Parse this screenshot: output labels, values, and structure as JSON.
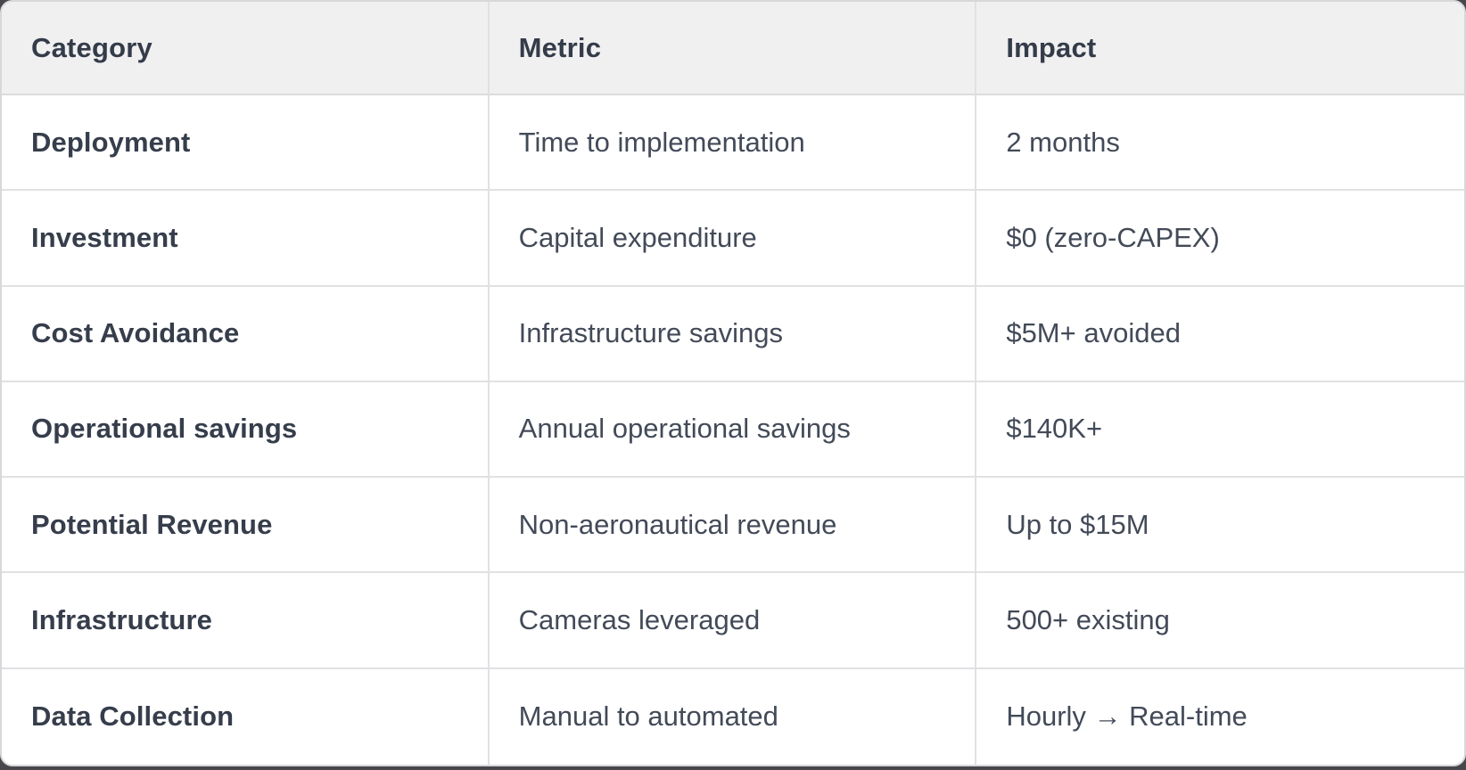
{
  "chart_data": {
    "type": "table",
    "title": "",
    "columns": [
      "Category",
      "Metric",
      "Impact"
    ],
    "rows": [
      {
        "category": "Deployment",
        "metric": "Time to implementation",
        "impact": "2 months"
      },
      {
        "category": "Investment",
        "metric": "Capital expenditure",
        "impact": "$0 (zero-CAPEX)"
      },
      {
        "category": "Cost Avoidance",
        "metric": "Infrastructure savings",
        "impact": "$5M+ avoided"
      },
      {
        "category": "Operational savings",
        "metric": "Annual operational savings",
        "impact": "$140K+"
      },
      {
        "category": "Potential Revenue",
        "metric": "Non-aeronautical revenue",
        "impact": "Up to $15M"
      },
      {
        "category": "Infrastructure",
        "metric": "Cameras leveraged",
        "impact": "500+ existing"
      },
      {
        "category": "Data Collection",
        "metric": "Manual to automated",
        "impact": "Hourly → Real-time"
      }
    ]
  },
  "table": {
    "headers": {
      "category": "Category",
      "metric": "Metric",
      "impact": "Impact"
    },
    "rows": [
      {
        "category": "Deployment",
        "metric": "Time to implementation",
        "impact": "2 months"
      },
      {
        "category": "Investment",
        "metric": "Capital expenditure",
        "impact": "$0 (zero-CAPEX)"
      },
      {
        "category": "Cost Avoidance",
        "metric": "Infrastructure savings",
        "impact": "$5M+ avoided"
      },
      {
        "category": "Operational savings",
        "metric": "Annual operational savings",
        "impact": "$140K+"
      },
      {
        "category": "Potential Revenue",
        "metric": "Non-aeronautical revenue",
        "impact": "Up to $15M"
      },
      {
        "category": "Infrastructure",
        "metric": "Cameras leveraged",
        "impact": "500+ existing"
      },
      {
        "category": "Data Collection",
        "metric": "Manual to automated",
        "impact": "Hourly → Real-time"
      }
    ]
  },
  "colors": {
    "header_background": "#f0f0f1",
    "row_background": "#ffffff",
    "divider": "#e1e1e4",
    "card_border": "#d8d8da",
    "text_bold": "#363d4b",
    "text_regular": "#434a58",
    "page_edge": "#48484c"
  }
}
